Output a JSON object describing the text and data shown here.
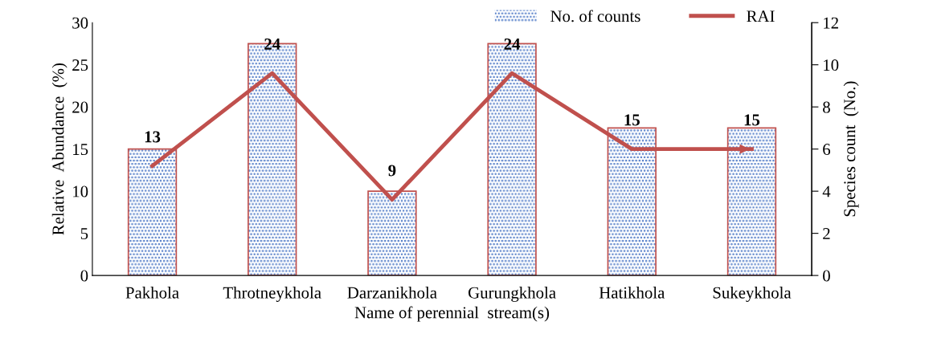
{
  "chart_data": {
    "type": "bar",
    "xlabel": "Name of perennial  stream(s)",
    "ylabel": "Relative  Abundance  (%)",
    "y2label": "Species count  (No.)",
    "categories": [
      "Pakhola",
      "Throtneykhola",
      "Darzanikhola",
      "Gurungkhola",
      "Hatikhola",
      "Sukeykhola"
    ],
    "series": [
      {
        "name": "No. of counts",
        "axis": "y2",
        "color": "#4472c4",
        "values": [
          6,
          11,
          4,
          11,
          7,
          7
        ]
      },
      {
        "name": "RAI",
        "type": "line",
        "axis": "y",
        "color": "#c0504d",
        "values": [
          13,
          24,
          9,
          24,
          15,
          15
        ],
        "value_labels": [
          "13",
          "24",
          "9",
          "24",
          "15",
          "15"
        ]
      }
    ],
    "ylim": [
      0,
      30
    ],
    "yticks": [
      0,
      5,
      10,
      15,
      20,
      25,
      30
    ],
    "y2lim": [
      0,
      12
    ],
    "y2ticks": [
      0,
      2,
      4,
      6,
      8,
      10,
      12
    ],
    "grid": false,
    "legend": "top right",
    "marker": "none",
    "line_style": "solid"
  }
}
